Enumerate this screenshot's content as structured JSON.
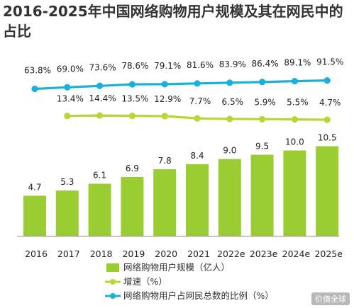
{
  "title": "2016-2025年中国网络购物用户规模及其在网民中的占比",
  "watermark": "价值全球",
  "colors": {
    "bar": "#9acd32",
    "growth": "#b7d735",
    "share": "#1ab0dc",
    "baseline": "#888888"
  },
  "chart_data": {
    "type": "bar",
    "categories": [
      "2016",
      "2017",
      "2018",
      "2019",
      "2020",
      "2021",
      "2022e",
      "2023e",
      "2024e",
      "2025e"
    ],
    "series": [
      {
        "name": "网络购物用户规模（亿人）",
        "type": "bar",
        "values": [
          4.7,
          5.3,
          6.1,
          6.9,
          7.8,
          8.4,
          9.0,
          9.5,
          10.0,
          10.5
        ],
        "labels": [
          "4.7",
          "5.3",
          "6.1",
          "6.9",
          "7.8",
          "8.4",
          "9.0",
          "9.5",
          "10.0",
          "10.5"
        ]
      },
      {
        "name": "增速（%）",
        "type": "line",
        "values": [
          null,
          13.4,
          14.4,
          13.5,
          12.9,
          7.7,
          6.5,
          5.9,
          5.5,
          4.7
        ],
        "labels": [
          "",
          "13.4%",
          "14.4%",
          "13.5%",
          "12.9%",
          "7.7%",
          "6.5%",
          "5.9%",
          "5.5%",
          "4.7%"
        ]
      },
      {
        "name": "网络购物用户占网民总数的比例（%）",
        "type": "line",
        "values": [
          63.8,
          69.0,
          73.6,
          78.6,
          79.1,
          81.6,
          83.9,
          86.4,
          89.1,
          91.5
        ],
        "labels": [
          "63.8%",
          "69.0%",
          "73.6%",
          "78.6%",
          "79.1%",
          "81.6%",
          "83.9%",
          "86.4%",
          "89.1%",
          "91.5%"
        ]
      }
    ],
    "xlabel": "",
    "ylabel": "",
    "grid": false,
    "legend_placement": "bottom"
  }
}
